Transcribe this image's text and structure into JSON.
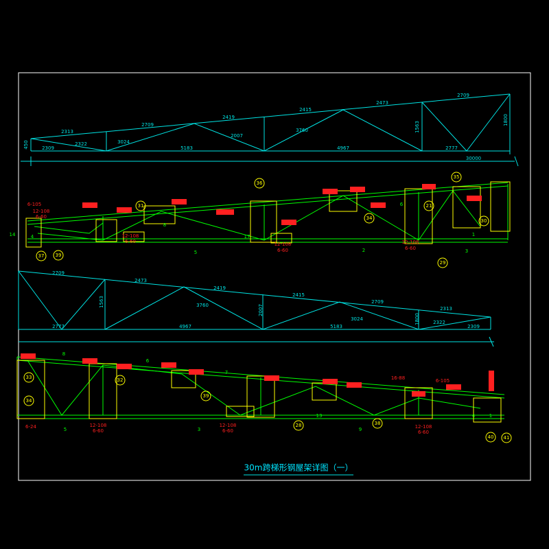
{
  "title": "30m跨梯形钢屋架详图（一）",
  "elevation_1": {
    "labels": [
      "2313",
      "2709",
      "2419",
      "2415",
      "2473",
      "2709",
      "2309",
      "5183",
      "4967",
      "2777",
      "30000",
      "1800",
      "2322",
      "3024",
      "2007",
      "3760",
      "1563",
      "450"
    ]
  },
  "elevation_2": {
    "labels": [
      "2709",
      "2473",
      "2419",
      "2415",
      "2709",
      "2313",
      "2777",
      "4967",
      "5183",
      "2309",
      "1563",
      "3760",
      "2007",
      "3024",
      "2322",
      "1800"
    ]
  },
  "detail_1": {
    "labels": [
      "12-108",
      "6-60",
      "12-108",
      "6-60",
      "12-108",
      "6-60",
      "6-105",
      "12-108",
      "6-60",
      "1",
      "2",
      "3",
      "4",
      "5",
      "6",
      "8",
      "14",
      "17",
      "31",
      "36",
      "35",
      "34",
      "30",
      "29",
      "37",
      "21",
      "39"
    ]
  },
  "detail_2": {
    "labels": [
      "6-24",
      "12-108",
      "6-60",
      "12-108",
      "6-60",
      "12-108",
      "6-60",
      "6-105",
      "16-88",
      "5",
      "3",
      "9",
      "8",
      "6",
      "7",
      "1",
      "4",
      "13",
      "33",
      "34",
      "32",
      "39",
      "28",
      "38",
      "40",
      "41"
    ]
  }
}
